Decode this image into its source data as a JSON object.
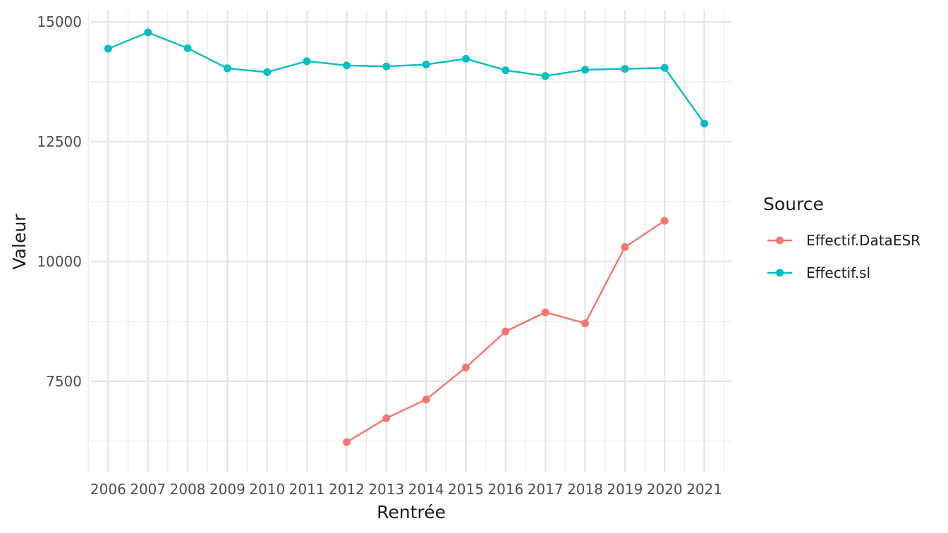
{
  "chart_data": {
    "type": "line",
    "xlabel": "Rentrée",
    "ylabel": "Valeur",
    "x": [
      2006,
      2007,
      2008,
      2009,
      2010,
      2011,
      2012,
      2013,
      2014,
      2015,
      2016,
      2017,
      2018,
      2019,
      2020,
      2021
    ],
    "x_tick_labels": [
      "2006",
      "2007",
      "2008",
      "2009",
      "2010",
      "2011",
      "2012",
      "2013",
      "2014",
      "2015",
      "2016",
      "2017",
      "2018",
      "2019",
      "2020",
      "2021"
    ],
    "y_ticks": [
      7500,
      10000,
      12500,
      15000
    ],
    "y_tick_labels": [
      "7500",
      "10000",
      "12500",
      "15000"
    ],
    "xlim": [
      2005.55,
      2021.7
    ],
    "ylim": [
      5600,
      15250
    ],
    "grid": true,
    "legend": {
      "title": "Source",
      "placement": "right"
    },
    "series": [
      {
        "name": "Effectif.DataESR",
        "color": "#F8766D",
        "x": [
          2012,
          2013,
          2014,
          2015,
          2016,
          2017,
          2018,
          2019,
          2020
        ],
        "values": [
          6230,
          6730,
          7120,
          7790,
          8540,
          8940,
          8710,
          10300,
          10850
        ]
      },
      {
        "name": "Effectif.sl",
        "color": "#00BFC4",
        "x": [
          2006,
          2007,
          2008,
          2009,
          2010,
          2011,
          2012,
          2013,
          2014,
          2015,
          2016,
          2017,
          2018,
          2019,
          2020,
          2021
        ],
        "values": [
          14440,
          14780,
          14450,
          14030,
          13950,
          14180,
          14090,
          14070,
          14110,
          14230,
          13990,
          13870,
          14000,
          14020,
          14040,
          12880
        ]
      }
    ]
  }
}
